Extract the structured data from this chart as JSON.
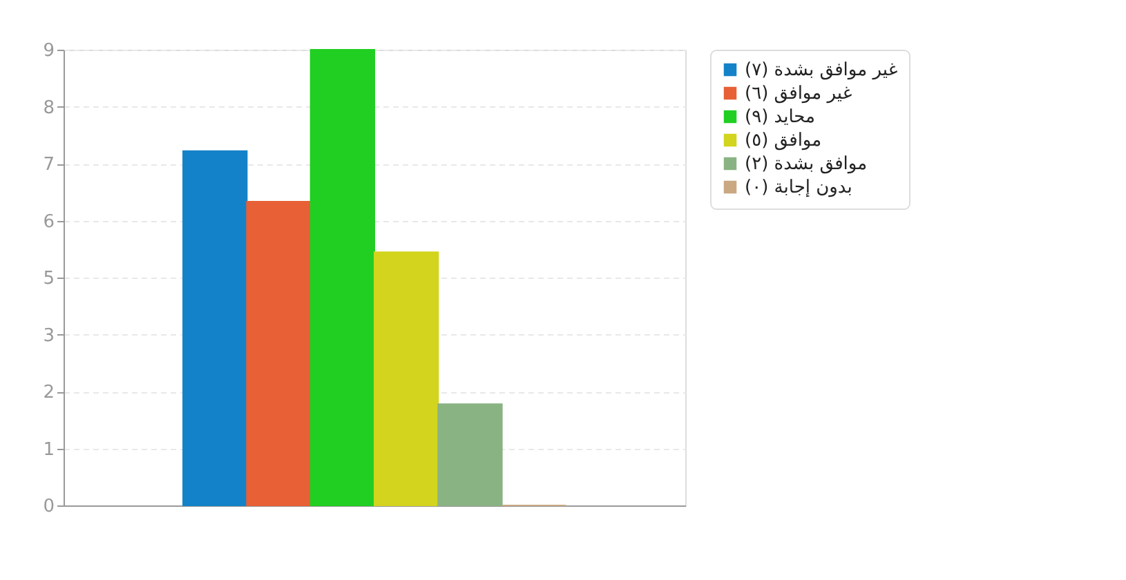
{
  "chart_data": {
    "type": "bar",
    "categories": [
      null
    ],
    "series": [
      {
        "name": "غير موافق بشدة (٧)",
        "color": "#1482c8",
        "values": [
          7
        ]
      },
      {
        "name": "غير موافق (٦)",
        "color": "#e86035",
        "values": [
          6
        ]
      },
      {
        "name": "محايد (٩)",
        "color": "#21cf22",
        "values": [
          9
        ]
      },
      {
        "name": "موافق (٥)",
        "color": "#d3d41d",
        "values": [
          5
        ]
      },
      {
        "name": "موافق بشدة (٢)",
        "color": "#8ab383",
        "values": [
          2
        ]
      },
      {
        "name": "بدون إجابة (٠)",
        "color": "#c9a882",
        "values": [
          0
        ]
      }
    ],
    "ylim": [
      0,
      9
    ],
    "yticks": [
      0,
      {
        "value": 1.125,
        "label": "1"
      },
      {
        "value": 2.25,
        "label": "2"
      },
      {
        "value": 3.375,
        "label": "3"
      },
      {
        "value": 4.5,
        "label": "5"
      },
      {
        "value": 5.625,
        "label": "6"
      },
      {
        "value": 6.75,
        "label": "7"
      },
      {
        "value": 7.875,
        "label": "8"
      },
      9
    ],
    "grid": "y",
    "legend": "top right",
    "tick_labels": "y"
  }
}
